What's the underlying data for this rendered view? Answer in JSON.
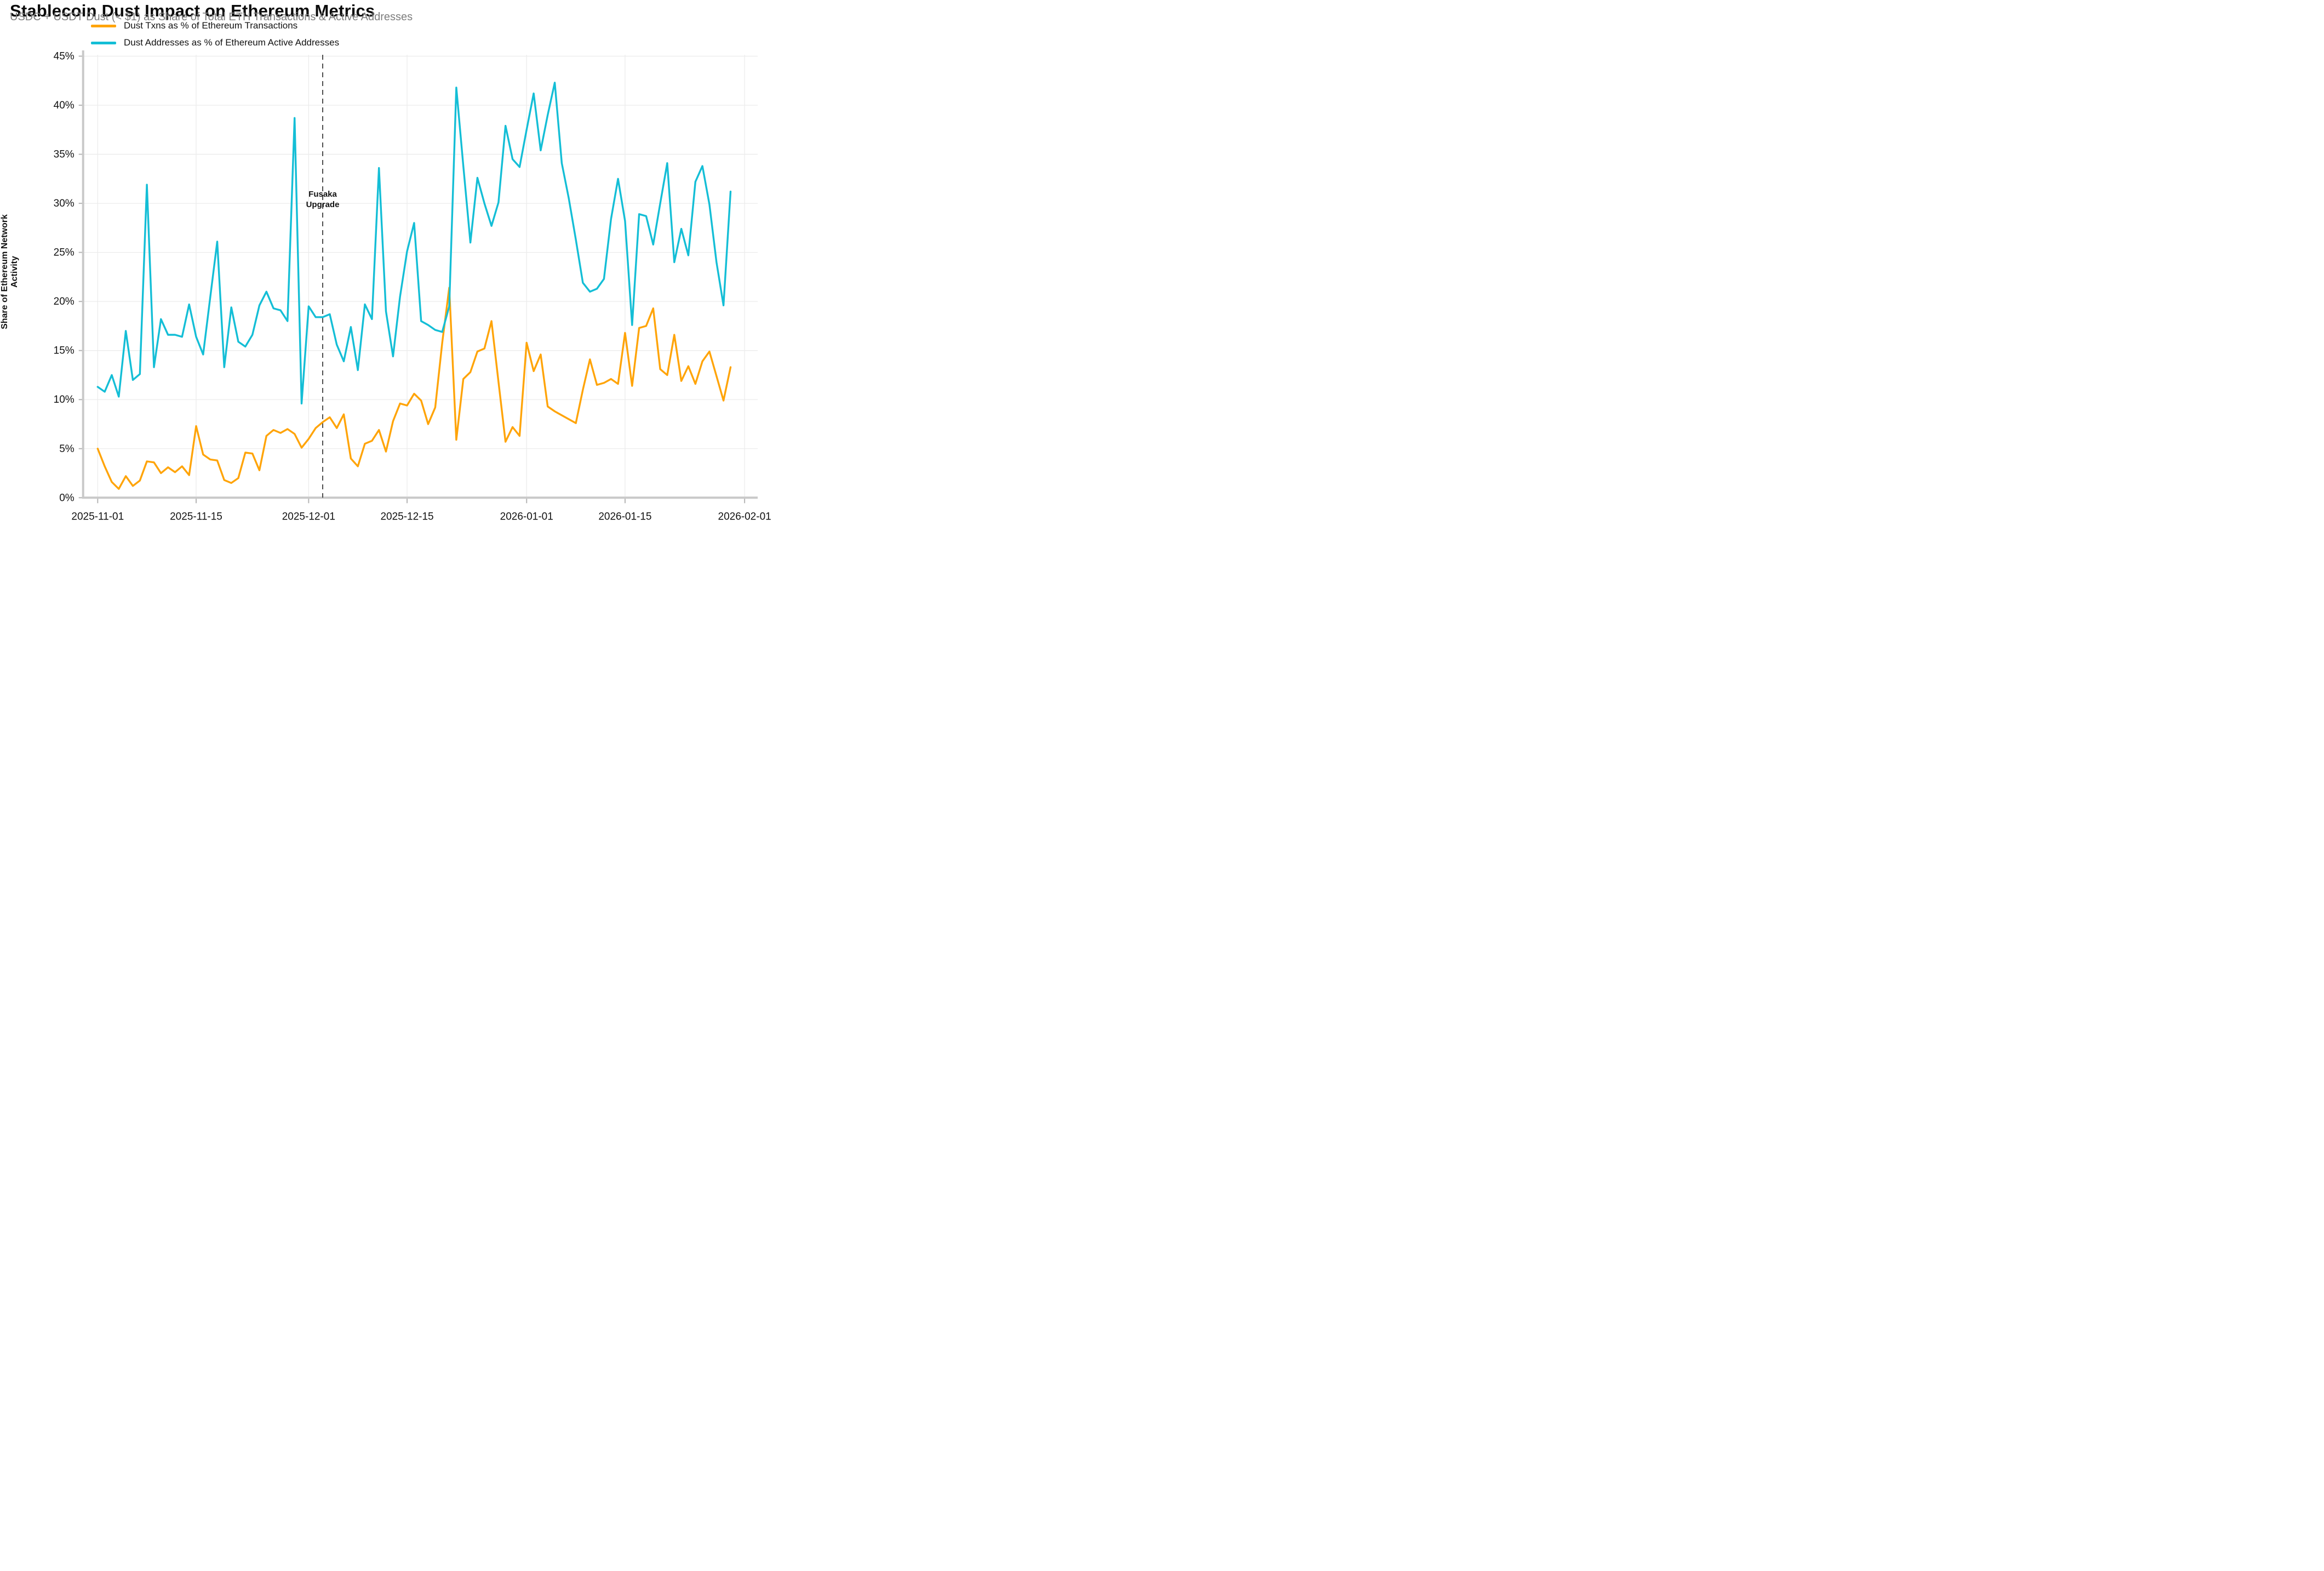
{
  "header": {
    "title": "Stablecoin Dust Impact on Ethereum Metrics",
    "subtitle": "USDC + USDT Dust (< $1) as Share of Total ETH Transactions & Active Addresses"
  },
  "chart_data": {
    "type": "line",
    "title": "Stablecoin Dust Impact on Ethereum Metrics",
    "subtitle": "USDC + USDT Dust (< $1) as Share of Total ETH Transactions & Active Addresses",
    "ylabel": "Share of Ethereum Network Activity",
    "xlabel": "",
    "ylim": [
      0,
      45
    ],
    "y_tick_labels": [
      "0%",
      "5%",
      "10%",
      "15%",
      "20%",
      "25%",
      "30%",
      "35%",
      "40%",
      "45%"
    ],
    "x_tick_labels": [
      "2025-11-01",
      "2025-11-15",
      "2025-12-01",
      "2025-12-15",
      "2026-01-01",
      "2026-01-15",
      "2026-02-01"
    ],
    "x_tick_day_index": [
      0,
      14,
      30,
      44,
      61,
      75,
      92
    ],
    "x_total_days": 92,
    "start_date": "2025-11-01",
    "frequency": "daily",
    "grid": true,
    "legend_position": "upper-left",
    "background": "#ffffff",
    "gridline_color": "#ececec",
    "spine_color": "#c9c9c9",
    "annotation": {
      "label_line1": "Fusaka",
      "label_line2": "Upgrade",
      "date": "2025-12-03",
      "day_index": 32,
      "line_style": "dashed",
      "line_color": "#3c3c3c"
    },
    "series": [
      {
        "name": "Dust Txns as % of Ethereum Transactions",
        "color": "#FFA408",
        "values": [
          5.0,
          3.2,
          1.6,
          0.9,
          2.2,
          1.2,
          1.75,
          3.7,
          3.6,
          2.5,
          3.1,
          2.6,
          3.2,
          2.3,
          7.3,
          4.4,
          3.9,
          3.8,
          1.8,
          1.5,
          2.0,
          4.6,
          4.5,
          2.8,
          6.3,
          6.9,
          6.6,
          7.0,
          6.5,
          5.1,
          6.0,
          7.1,
          7.7,
          8.2,
          7.1,
          8.5,
          4.0,
          3.2,
          5.5,
          5.8,
          6.9,
          4.7,
          7.8,
          9.6,
          9.4,
          10.6,
          9.9,
          7.5,
          9.2,
          15.8,
          21.4,
          5.9,
          12.1,
          12.8,
          14.9,
          15.2,
          18.0,
          11.8,
          5.7,
          7.2,
          6.3,
          15.8,
          12.9,
          14.6,
          9.3,
          8.8,
          8.4,
          8.0,
          7.6,
          11.0,
          14.1,
          11.5,
          11.7,
          12.1,
          11.6,
          16.8,
          11.4,
          17.3,
          17.5,
          19.3,
          13.1,
          12.5,
          16.6,
          11.9,
          13.4,
          11.6,
          13.9,
          14.9,
          12.4,
          9.9,
          13.3
        ]
      },
      {
        "name": "Dust Addresses as % of Ethereum Active Addresses",
        "color": "#14BED6",
        "values": [
          11.3,
          10.8,
          12.5,
          10.3,
          17.0,
          12.0,
          12.6,
          31.9,
          13.3,
          18.2,
          16.6,
          16.6,
          16.4,
          19.7,
          16.4,
          14.6,
          20.4,
          26.1,
          13.3,
          19.4,
          15.9,
          15.4,
          16.6,
          19.6,
          21.0,
          19.3,
          19.1,
          18.0,
          38.7,
          9.6,
          19.5,
          18.4,
          18.4,
          18.7,
          15.6,
          13.9,
          17.4,
          13.0,
          19.7,
          18.2,
          33.6,
          19.0,
          14.4,
          20.5,
          25.1,
          28.0,
          18.0,
          17.6,
          17.1,
          16.9,
          19.5,
          41.8,
          33.8,
          26.0,
          32.6,
          30.0,
          27.7,
          30.1,
          37.9,
          34.5,
          33.7,
          37.5,
          41.2,
          35.4,
          39.0,
          42.3,
          34.1,
          30.5,
          26.3,
          21.9,
          21.0,
          21.3,
          22.3,
          28.4,
          32.5,
          28.2,
          17.6,
          28.9,
          28.7,
          25.8,
          30.0,
          34.1,
          24.0,
          27.4,
          24.7,
          32.2,
          33.8,
          29.9,
          24.0,
          19.6,
          31.2
        ]
      }
    ]
  }
}
